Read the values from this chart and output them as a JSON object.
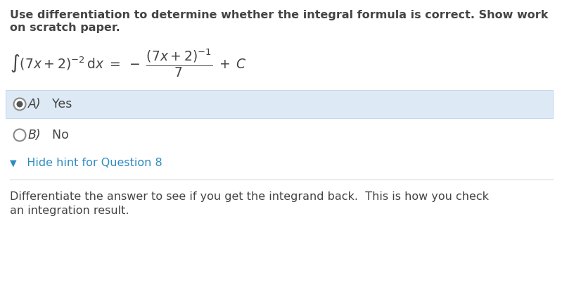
{
  "title_line1": "Use differentiation to determine whether the integral formula is correct. Show work",
  "title_line2": "on scratch paper.",
  "option_A_label": "A)",
  "option_A_text": "  Yes",
  "option_B_label": "B)",
  "option_B_text": "  No",
  "hint_arrow": "▼",
  "hint_text": "  Hide hint for Question 8",
  "hint_color": "#2e8bc0",
  "hint_body_line1": "Differentiate the answer to see if you get the integrand back.  This is how you check",
  "hint_body_line2": "an integration result.",
  "bg_color": "#ffffff",
  "selected_bg": "#ddeaf5",
  "selected_border": "#c5d8ea",
  "text_color": "#444444",
  "title_fontsize": 11.5,
  "body_fontsize": 11.5,
  "formula_fontsize": 13.5,
  "option_fontsize": 12.5,
  "hint_fontsize": 11.5,
  "hint_arrow_fontsize": 9
}
